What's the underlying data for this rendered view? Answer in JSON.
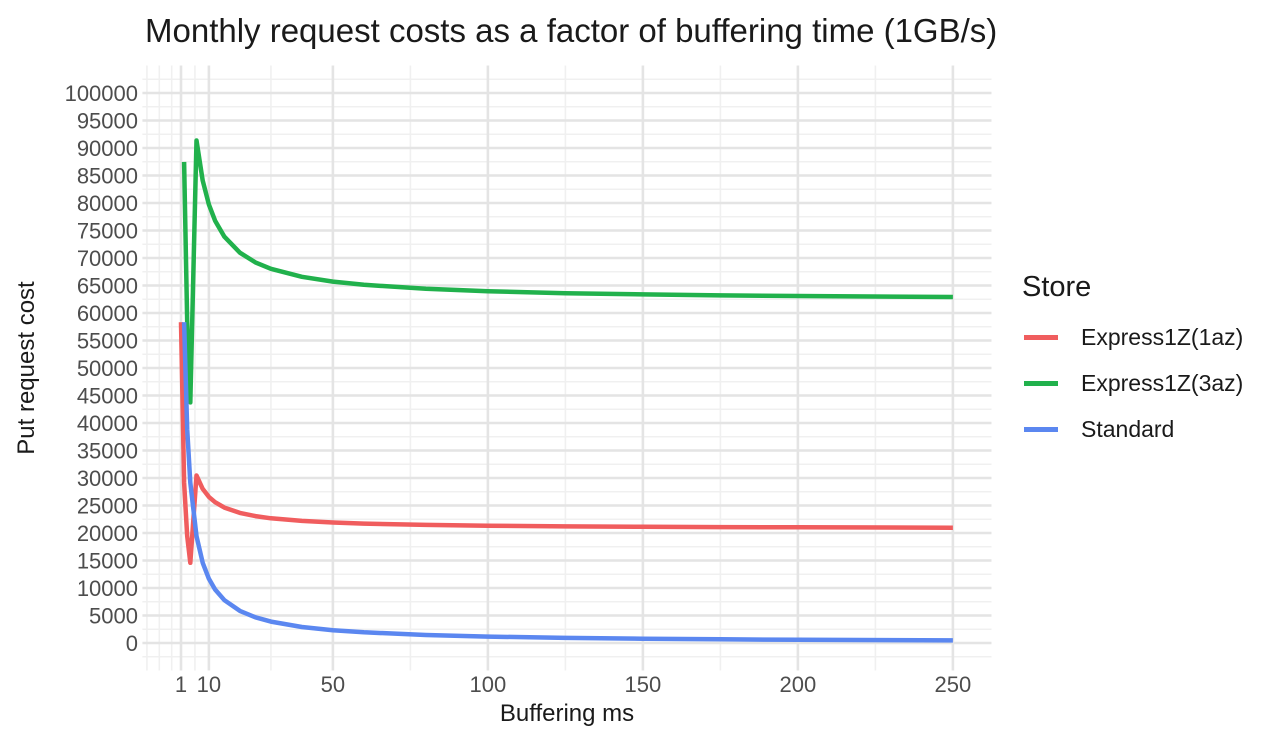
{
  "chart_data": {
    "type": "line",
    "title": "Monthly request costs as a factor of buffering time (1GB/s)",
    "xlabel": "Buffering ms",
    "ylabel": "Put request cost",
    "x_ticks": [
      1,
      10,
      50,
      100,
      150,
      200,
      250
    ],
    "x_minor_gridlines": [
      -10,
      -6,
      -2,
      5.5,
      30,
      75,
      125,
      175,
      225
    ],
    "y_ticks": [
      0,
      5000,
      10000,
      15000,
      20000,
      25000,
      30000,
      35000,
      40000,
      45000,
      50000,
      55000,
      60000,
      65000,
      70000,
      75000,
      80000,
      85000,
      90000,
      95000,
      100000
    ],
    "y_minor_step": 5000,
    "y_minor_start": -2500,
    "y_minor_end": 102500,
    "xlim": [
      -11.45,
      262.45
    ],
    "ylim": [
      -5000,
      105000
    ],
    "grid": "major+minor, no axis lines, white panel",
    "legend": {
      "title": "Store",
      "position": "right"
    },
    "series": [
      {
        "name": "Express1Z(1az)",
        "color": "#F05D5E",
        "points": [
          [
            1,
            58320
          ],
          [
            2,
            29160
          ],
          [
            3,
            19440
          ],
          [
            4,
            14580
          ],
          [
            6,
            30456
          ],
          [
            8,
            28026
          ],
          [
            10,
            26568
          ],
          [
            12,
            25596
          ],
          [
            15,
            24624
          ],
          [
            20,
            23652
          ],
          [
            25,
            23069
          ],
          [
            30,
            22680
          ],
          [
            40,
            22194
          ],
          [
            50,
            21902
          ],
          [
            60,
            21708
          ],
          [
            80,
            21465
          ],
          [
            100,
            21319
          ],
          [
            125,
            21203
          ],
          [
            150,
            21125
          ],
          [
            175,
            21069
          ],
          [
            200,
            21028
          ],
          [
            250,
            20969
          ]
        ]
      },
      {
        "name": "Express1Z(3az)",
        "color": "#21B14C",
        "points": [
          [
            2,
            87480
          ],
          [
            3,
            58320
          ],
          [
            4,
            43740
          ],
          [
            6,
            91368
          ],
          [
            8,
            84078
          ],
          [
            10,
            79704
          ],
          [
            12,
            76788
          ],
          [
            15,
            73872
          ],
          [
            20,
            70956
          ],
          [
            25,
            69206
          ],
          [
            30,
            68040
          ],
          [
            40,
            66582
          ],
          [
            50,
            65707
          ],
          [
            60,
            65124
          ],
          [
            80,
            64395
          ],
          [
            100,
            63958
          ],
          [
            125,
            63608
          ],
          [
            150,
            63374
          ],
          [
            175,
            63206
          ],
          [
            200,
            63085
          ],
          [
            250,
            62908
          ]
        ]
      },
      {
        "name": "Standard",
        "color": "#5B87F0",
        "points": [
          [
            2,
            58320
          ],
          [
            3,
            38880
          ],
          [
            4,
            29160
          ],
          [
            6,
            19440
          ],
          [
            8,
            14580
          ],
          [
            10,
            11664
          ],
          [
            12,
            9720
          ],
          [
            15,
            7776
          ],
          [
            20,
            5832
          ],
          [
            25,
            4666
          ],
          [
            30,
            3888
          ],
          [
            40,
            2916
          ],
          [
            50,
            2333
          ],
          [
            60,
            1944
          ],
          [
            80,
            1458
          ],
          [
            100,
            1166
          ],
          [
            125,
            933
          ],
          [
            150,
            778
          ],
          [
            175,
            667
          ],
          [
            200,
            583
          ],
          [
            250,
            467
          ]
        ]
      }
    ],
    "colors": {
      "grid_major": "#e4e4e4",
      "grid_minor": "#f0f0f0",
      "tick_text": "#4d4d4d",
      "title_text": "#1a1a1a"
    }
  }
}
